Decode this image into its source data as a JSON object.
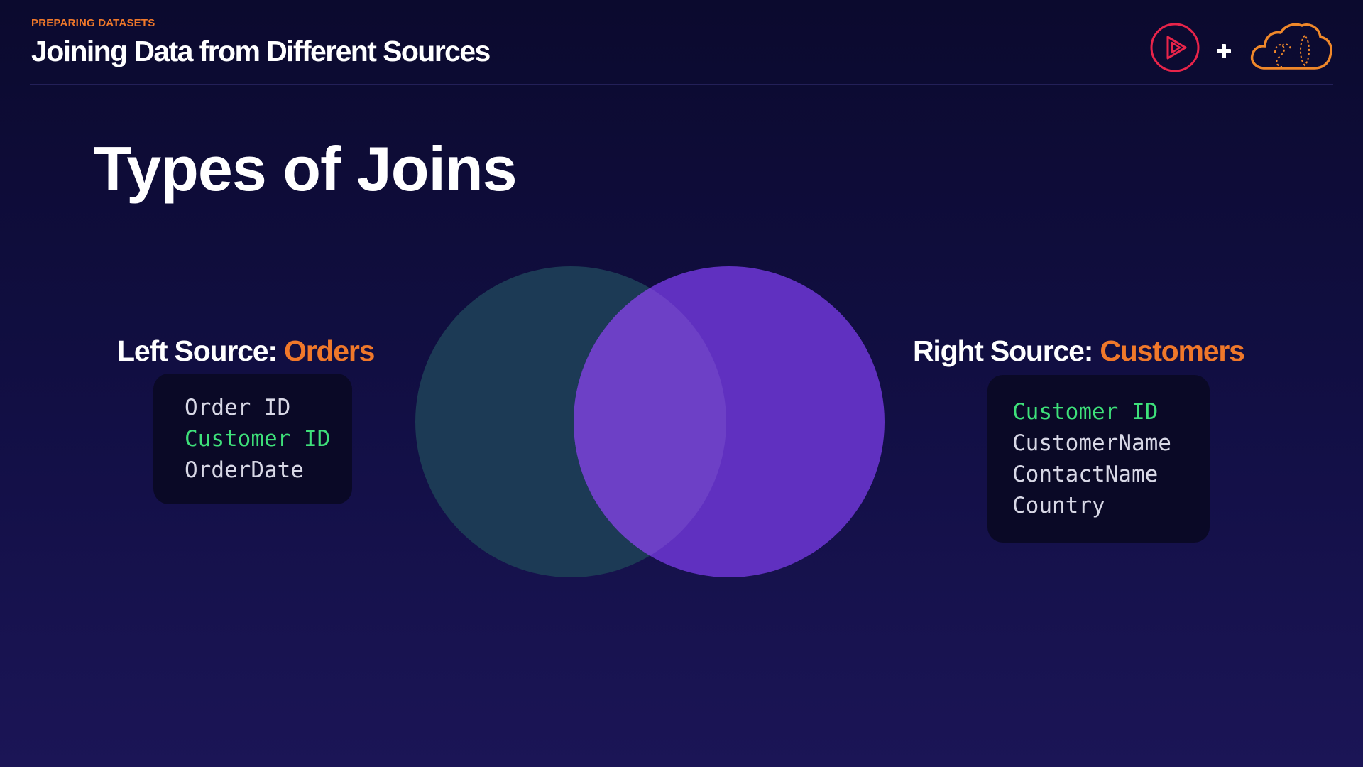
{
  "header": {
    "kicker": "PREPARING DATASETS",
    "title": "Joining Data from Different Sources"
  },
  "logos": {
    "play_icon": "play-logo-icon",
    "plus": "+",
    "cloud_icon": "cloud-logo-icon"
  },
  "slide": {
    "title": "Types of Joins"
  },
  "left_source": {
    "label_prefix": "Left Source: ",
    "name": "Orders",
    "fields": [
      {
        "text": "Order ID",
        "key": false
      },
      {
        "text": "Customer ID",
        "key": true
      },
      {
        "text": "OrderDate",
        "key": false
      }
    ]
  },
  "right_source": {
    "label_prefix": "Right Source: ",
    "name": "Customers",
    "fields": [
      {
        "text": "Customer ID",
        "key": true
      },
      {
        "text": "CustomerName",
        "key": false
      },
      {
        "text": "ContactName",
        "key": false
      },
      {
        "text": "Country",
        "key": false
      }
    ]
  },
  "colors": {
    "accent_orange": "#f0782a",
    "key_green": "#3ee07a",
    "left_circle": "#1c3a55",
    "right_circle": "#6030c0",
    "overlap": "#6d40c6",
    "play_logo": "#e8244a"
  }
}
